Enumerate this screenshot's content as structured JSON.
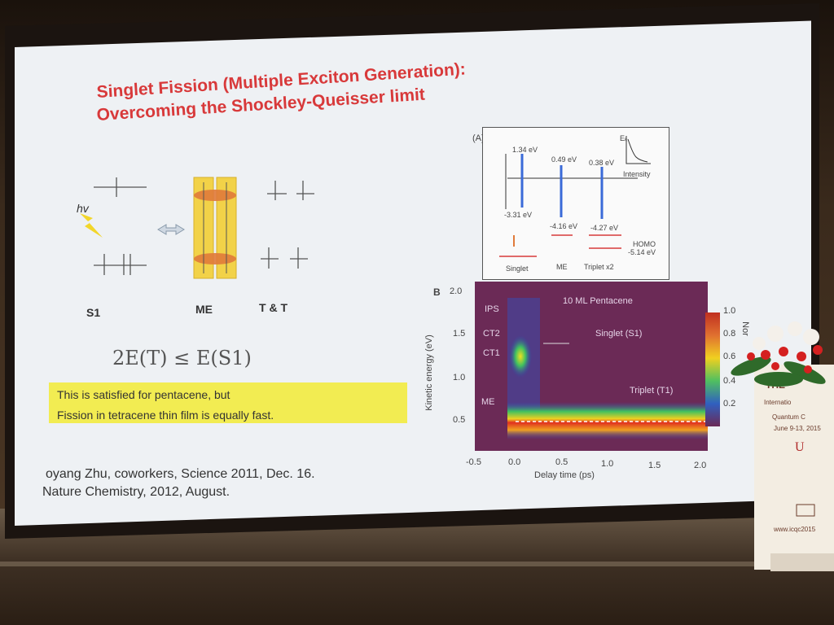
{
  "slide": {
    "title_line1": "Singlet Fission (Multiple Exciton Generation):",
    "title_line2": "Overcoming the Shockley-Queisser limit",
    "hv": "hv",
    "state_labels": [
      "S1",
      "ME",
      "T & T"
    ],
    "formula": "2E(T) ≤ E(S1)",
    "callout_line1": "This is satisfied for pentacene, but",
    "callout_line2": "Fission in tetracene thin film is equally fast.",
    "citation_line1": "oyang Zhu, coworkers, Science 2011, Dec. 16.",
    "citation_line2": "Nature Chemistry, 2012, August."
  },
  "figure_a": {
    "panel": "(A)",
    "energies": [
      "1.34 eV",
      "0.49 eV",
      "0.38 eV",
      "-3.31 eV",
      "-4.16 eV",
      "-4.27 eV",
      "-5.14 eV"
    ],
    "labels": [
      "Eₖ",
      "Intensity",
      "HOMO",
      "Singlet",
      "ME",
      "Triplet x2"
    ]
  },
  "figure_b": {
    "panel": "B",
    "inset_title": "10 ML Pentacene",
    "states": [
      "IPS",
      "CT2",
      "CT1",
      "ME"
    ],
    "annotations": [
      "Singlet (S1)",
      "Triplet (T1)"
    ],
    "xlabel": "Delay time (ps)",
    "ylabel": "Kinetic energy (eV)",
    "xticks": [
      "-0.5",
      "0.0",
      "0.5",
      "1.0",
      "1.5",
      "2.0"
    ],
    "yticks": [
      "2.0",
      "1.5",
      "1.0",
      "0.5"
    ],
    "colorbar_ticks": [
      "1.0",
      "0.8",
      "0.6",
      "0.4",
      "0.2"
    ],
    "colorbar_label": "Nor"
  },
  "podium": {
    "sign": "THE",
    "lines": [
      "Internatio",
      "Quantum C",
      "June 9-13, 2015"
    ],
    "website": "www.icqc2015"
  },
  "colors": {
    "title_red": "#d8393a",
    "callout_yellow": "#f2ec52",
    "heatmap_bg": "#6b2a56"
  }
}
